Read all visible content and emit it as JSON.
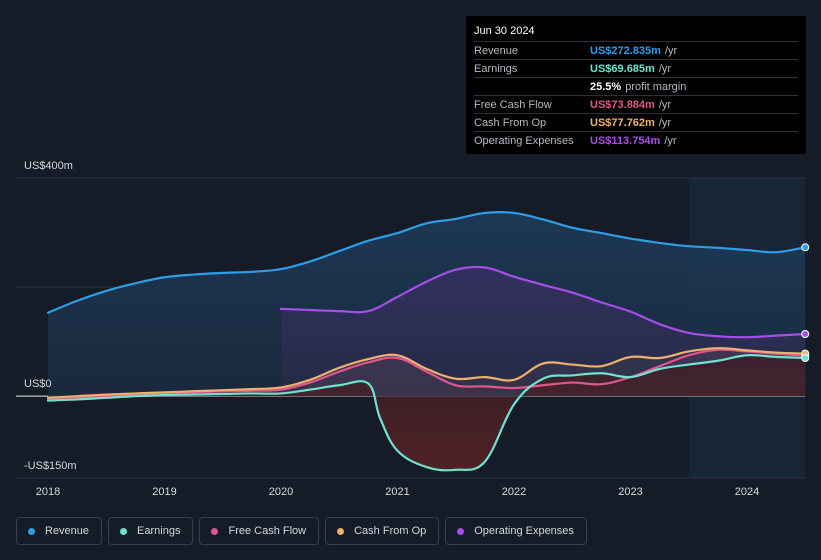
{
  "tooltip": {
    "date": "Jun 30 2024",
    "rows": [
      {
        "label": "Revenue",
        "value": "US$272.835m",
        "unit": "/yr",
        "color": "#2f9ee8"
      },
      {
        "label": "Earnings",
        "value": "US$69.685m",
        "unit": "/yr",
        "color": "#6de3d0"
      },
      {
        "label": "",
        "value": "25.5%",
        "unit": "profit margin",
        "color": "#ffffff"
      },
      {
        "label": "Free Cash Flow",
        "value": "US$73.884m",
        "unit": "/yr",
        "color": "#e0568f"
      },
      {
        "label": "Cash From Op",
        "value": "US$77.762m",
        "unit": "/yr",
        "color": "#f0b070"
      },
      {
        "label": "Operating Expenses",
        "value": "US$113.754m",
        "unit": "/yr",
        "color": "#a64fe8"
      }
    ]
  },
  "legend": [
    {
      "label": "Revenue",
      "color": "#2f9ee8"
    },
    {
      "label": "Earnings",
      "color": "#6de3d0"
    },
    {
      "label": "Free Cash Flow",
      "color": "#e0568f"
    },
    {
      "label": "Cash From Op",
      "color": "#f0b070"
    },
    {
      "label": "Operating Expenses",
      "color": "#a64fe8"
    }
  ],
  "chart_data": {
    "type": "area",
    "title": "",
    "y_unit": "US$m",
    "ylim": [
      -150,
      400
    ],
    "y_tick_labels": [
      {
        "value": 400,
        "label": "US$400m"
      },
      {
        "value": 0,
        "label": "US$0"
      },
      {
        "value": -150,
        "label": "-US$150m"
      }
    ],
    "x_tick_labels": [
      "2018",
      "2019",
      "2020",
      "2021",
      "2022",
      "2023",
      "2024"
    ],
    "xlim": [
      2017.72,
      2024.5
    ],
    "forecast_shade_start": 2023.5,
    "series": [
      {
        "name": "Revenue",
        "color": "#2f9ee8",
        "points": [
          [
            2018.0,
            153
          ],
          [
            2018.25,
            175
          ],
          [
            2018.5,
            193
          ],
          [
            2018.75,
            207
          ],
          [
            2019.0,
            218
          ],
          [
            2019.25,
            223
          ],
          [
            2019.5,
            226
          ],
          [
            2019.75,
            228
          ],
          [
            2020.0,
            233
          ],
          [
            2020.25,
            247
          ],
          [
            2020.5,
            266
          ],
          [
            2020.75,
            285
          ],
          [
            2021.0,
            299
          ],
          [
            2021.25,
            317
          ],
          [
            2021.5,
            325
          ],
          [
            2021.75,
            336
          ],
          [
            2022.0,
            336
          ],
          [
            2022.25,
            324
          ],
          [
            2022.5,
            309
          ],
          [
            2022.75,
            299
          ],
          [
            2023.0,
            289
          ],
          [
            2023.25,
            281
          ],
          [
            2023.5,
            275
          ],
          [
            2023.75,
            272
          ],
          [
            2024.0,
            268
          ],
          [
            2024.25,
            264
          ],
          [
            2024.5,
            273
          ]
        ]
      },
      {
        "name": "Earnings",
        "color": "#6de3d0",
        "points": [
          [
            2018.0,
            -8
          ],
          [
            2018.25,
            -6
          ],
          [
            2018.5,
            -3
          ],
          [
            2018.75,
            0
          ],
          [
            2019.0,
            2
          ],
          [
            2019.25,
            3
          ],
          [
            2019.5,
            4
          ],
          [
            2019.75,
            5
          ],
          [
            2020.0,
            5
          ],
          [
            2020.25,
            12
          ],
          [
            2020.5,
            20
          ],
          [
            2020.75,
            23
          ],
          [
            2020.85,
            -40
          ],
          [
            2021.0,
            -100
          ],
          [
            2021.25,
            -130
          ],
          [
            2021.5,
            -135
          ],
          [
            2021.75,
            -120
          ],
          [
            2022.0,
            -15
          ],
          [
            2022.25,
            32
          ],
          [
            2022.5,
            38
          ],
          [
            2022.75,
            42
          ],
          [
            2023.0,
            35
          ],
          [
            2023.25,
            50
          ],
          [
            2023.5,
            58
          ],
          [
            2023.75,
            65
          ],
          [
            2024.0,
            75
          ],
          [
            2024.25,
            72
          ],
          [
            2024.5,
            70
          ]
        ]
      },
      {
        "name": "Free Cash Flow",
        "color": "#e0568f",
        "points": [
          [
            2018.0,
            -5
          ],
          [
            2018.25,
            -3
          ],
          [
            2018.5,
            0
          ],
          [
            2018.75,
            3
          ],
          [
            2019.0,
            5
          ],
          [
            2019.25,
            7
          ],
          [
            2019.5,
            9
          ],
          [
            2019.75,
            10
          ],
          [
            2020.0,
            12
          ],
          [
            2020.25,
            25
          ],
          [
            2020.5,
            45
          ],
          [
            2020.75,
            62
          ],
          [
            2021.0,
            70
          ],
          [
            2021.25,
            45
          ],
          [
            2021.5,
            20
          ],
          [
            2021.75,
            18
          ],
          [
            2022.0,
            15
          ],
          [
            2022.25,
            20
          ],
          [
            2022.5,
            25
          ],
          [
            2022.75,
            22
          ],
          [
            2023.0,
            35
          ],
          [
            2023.25,
            55
          ],
          [
            2023.5,
            75
          ],
          [
            2023.75,
            85
          ],
          [
            2024.0,
            82
          ],
          [
            2024.25,
            78
          ],
          [
            2024.5,
            74
          ]
        ]
      },
      {
        "name": "Cash From Op",
        "color": "#f0b070",
        "points": [
          [
            2018.0,
            -3
          ],
          [
            2018.25,
            0
          ],
          [
            2018.5,
            3
          ],
          [
            2018.75,
            5
          ],
          [
            2019.0,
            7
          ],
          [
            2019.25,
            9
          ],
          [
            2019.5,
            11
          ],
          [
            2019.75,
            13
          ],
          [
            2020.0,
            16
          ],
          [
            2020.25,
            30
          ],
          [
            2020.5,
            52
          ],
          [
            2020.75,
            68
          ],
          [
            2021.0,
            75
          ],
          [
            2021.25,
            50
          ],
          [
            2021.5,
            32
          ],
          [
            2021.75,
            35
          ],
          [
            2022.0,
            30
          ],
          [
            2022.25,
            60
          ],
          [
            2022.5,
            58
          ],
          [
            2022.75,
            55
          ],
          [
            2023.0,
            72
          ],
          [
            2023.25,
            70
          ],
          [
            2023.5,
            82
          ],
          [
            2023.75,
            88
          ],
          [
            2024.0,
            84
          ],
          [
            2024.25,
            80
          ],
          [
            2024.5,
            78
          ]
        ]
      },
      {
        "name": "Operating Expenses",
        "color": "#a64fe8",
        "points": [
          [
            2020.0,
            160
          ],
          [
            2020.25,
            158
          ],
          [
            2020.5,
            156
          ],
          [
            2020.75,
            156
          ],
          [
            2021.0,
            182
          ],
          [
            2021.25,
            210
          ],
          [
            2021.5,
            232
          ],
          [
            2021.75,
            236
          ],
          [
            2022.0,
            219
          ],
          [
            2022.25,
            204
          ],
          [
            2022.5,
            190
          ],
          [
            2022.75,
            172
          ],
          [
            2023.0,
            155
          ],
          [
            2023.25,
            132
          ],
          [
            2023.5,
            116
          ],
          [
            2023.75,
            110
          ],
          [
            2024.0,
            108
          ],
          [
            2024.25,
            111
          ],
          [
            2024.5,
            114
          ]
        ]
      }
    ]
  }
}
